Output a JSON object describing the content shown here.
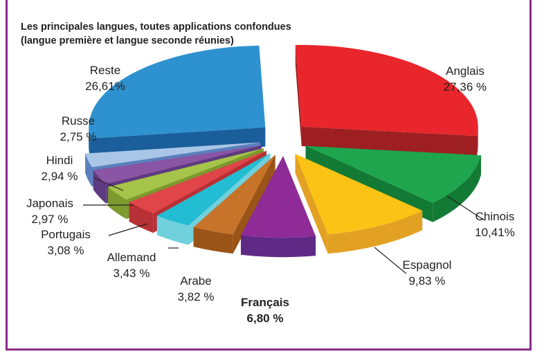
{
  "chart_data": {
    "type": "pie",
    "title": "Les principales langues, toutes applications confondues",
    "subtitle": "(langue première et langue seconde réunies)",
    "slices": [
      {
        "name": "Anglais",
        "value_label": "27,36 %",
        "value": 27.36,
        "color": "#e8262b",
        "side": "#9d1f22",
        "highlight": false
      },
      {
        "name": "Chinois",
        "value_label": "10,41%",
        "value": 10.41,
        "color": "#1fa54d",
        "side": "#137a35",
        "highlight": false
      },
      {
        "name": "Espagnol",
        "value_label": "9,83 %",
        "value": 9.83,
        "color": "#fbc315",
        "side": "#e3a124",
        "highlight": false
      },
      {
        "name": "Français",
        "value_label": "6,80 %",
        "value": 6.8,
        "color": "#8e2b96",
        "side": "#5e2a86",
        "highlight": true
      },
      {
        "name": "Arabe",
        "value_label": "3,82 %",
        "value": 3.82,
        "color": "#c7742a",
        "side": "#9b5418",
        "highlight": false
      },
      {
        "name": "Allemand",
        "value_label": "3,43 %",
        "value": 3.43,
        "color": "#22bcd3",
        "side": "#70d0dc",
        "highlight": false
      },
      {
        "name": "Portugais",
        "value_label": "3,08 %",
        "value": 3.08,
        "color": "#e0454a",
        "side": "#b73035",
        "highlight": false
      },
      {
        "name": "Japonais",
        "value_label": "2,97 %",
        "value": 2.97,
        "color": "#a6c44a",
        "side": "#7d9a2e",
        "highlight": false
      },
      {
        "name": "Hindi",
        "value_label": "2,94 %",
        "value": 2.94,
        "color": "#8b55a5",
        "side": "#5d3b80",
        "highlight": false
      },
      {
        "name": "Russe",
        "value_label": "2,75 %",
        "value": 2.75,
        "color": "#a9c6e6",
        "side": "#5b7fbd",
        "highlight": false
      },
      {
        "name": "Reste",
        "value_label": "26,61%",
        "value": 26.61,
        "color": "#2e92d0",
        "side": "#1a5e9c",
        "highlight": false
      }
    ],
    "legend": "none",
    "style": "3d-exploded"
  },
  "colors": {
    "frame": "#8a2b8e",
    "text": "#231f20",
    "leader": "#231f20"
  }
}
